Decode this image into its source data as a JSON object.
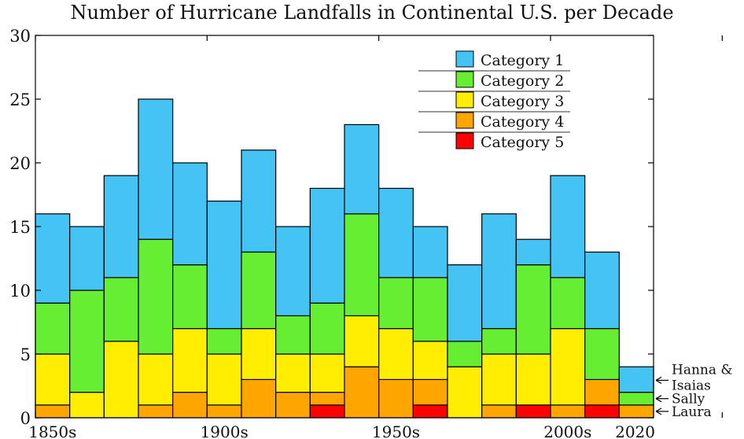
{
  "chart_data": {
    "type": "bar",
    "stacked": true,
    "title": "Number of Hurricane Landfalls in Continental U.S. per Decade",
    "xlabel": "",
    "ylabel": "",
    "ylim": [
      0,
      30
    ],
    "yticks": [
      0,
      5,
      10,
      15,
      20,
      25,
      30
    ],
    "x_tick_labels": [
      {
        "label": "1850s",
        "index": 0
      },
      {
        "label": "1900s",
        "index": 5
      },
      {
        "label": "1950s",
        "index": 10
      },
      {
        "label": "2000s",
        "index": 15
      },
      {
        "label": "2020",
        "index": 17
      }
    ],
    "categories": [
      "1850s",
      "1860s",
      "1870s",
      "1880s",
      "1890s",
      "1900s",
      "1910s",
      "1920s",
      "1930s",
      "1940s",
      "1950s",
      "1960s",
      "1970s",
      "1980s",
      "1990s",
      "2000s",
      "2010s",
      "2020"
    ],
    "series": [
      {
        "name": "Category 5",
        "color": "#ff0000",
        "values": [
          0,
          0,
          0,
          0,
          0,
          0,
          0,
          0,
          1,
          0,
          0,
          1,
          0,
          0,
          1,
          0,
          1,
          0
        ]
      },
      {
        "name": "Category 4",
        "color": "#ffa500",
        "values": [
          1,
          0,
          0,
          1,
          2,
          1,
          3,
          2,
          1,
          4,
          3,
          2,
          0,
          1,
          0,
          1,
          2,
          1
        ]
      },
      {
        "name": "Category 3",
        "color": "#ffee00",
        "values": [
          4,
          2,
          6,
          4,
          5,
          4,
          4,
          3,
          3,
          4,
          4,
          3,
          4,
          4,
          4,
          6,
          0,
          0
        ]
      },
      {
        "name": "Category 2",
        "color": "#66ee33",
        "values": [
          4,
          8,
          5,
          9,
          5,
          2,
          6,
          3,
          4,
          8,
          4,
          5,
          2,
          2,
          7,
          4,
          4,
          1
        ]
      },
      {
        "name": "Category 1",
        "color": "#44c4f4",
        "values": [
          7,
          5,
          8,
          11,
          8,
          10,
          8,
          7,
          9,
          7,
          7,
          4,
          6,
          9,
          2,
          8,
          6,
          2
        ]
      }
    ],
    "legend": {
      "position": "top-right",
      "entries": [
        "Category 1",
        "Category 2",
        "Category 3",
        "Category 4",
        "Category 5"
      ]
    },
    "annotations": [
      {
        "text": "Hanna &",
        "text2": "Isaias",
        "points_to": "Category 1 and Category 2 of 2020"
      },
      {
        "text": "Sally",
        "points_to": "Category 2 of 2020"
      },
      {
        "text": "Laura",
        "points_to": "Category 4 of 2020"
      }
    ],
    "grid": false
  }
}
